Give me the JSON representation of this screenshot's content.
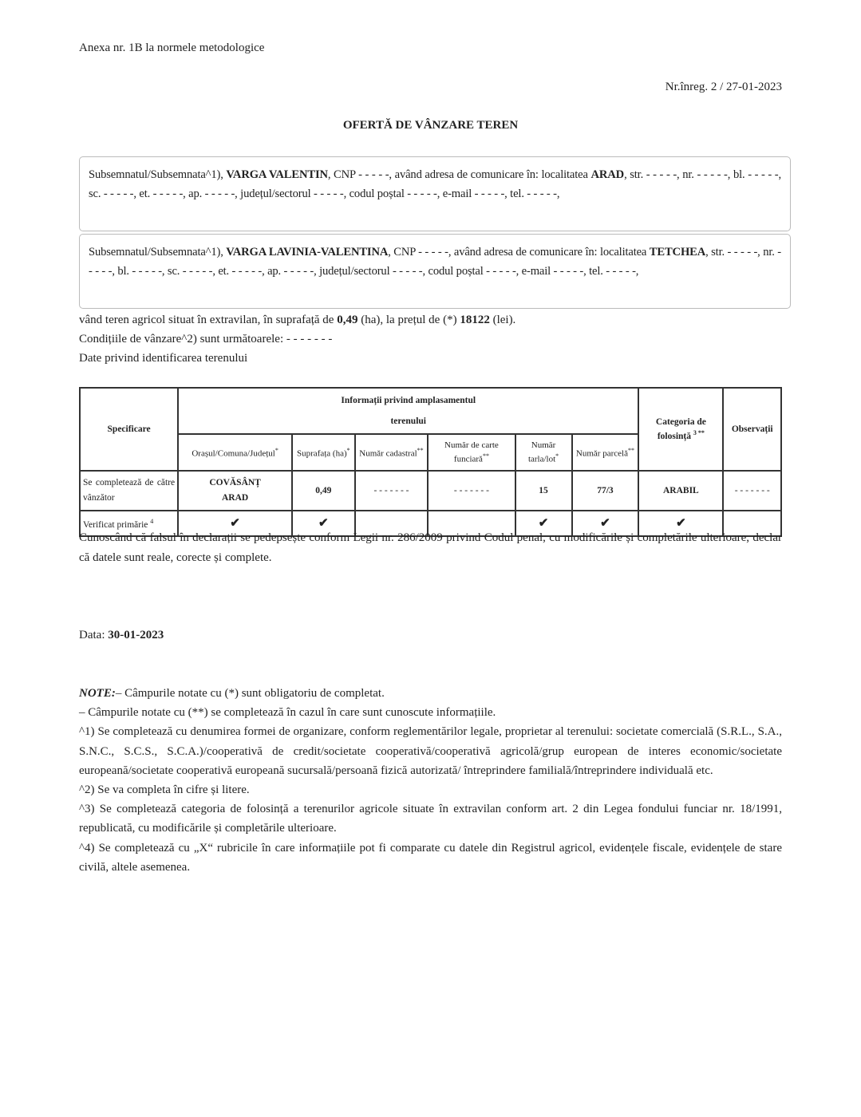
{
  "header": {
    "annex": "Anexa nr. 1B la normele metodologice",
    "registration": "Nr.înreg. 2 / 27-01-2023",
    "title": "OFERTĂ DE VÂNZARE TEREN"
  },
  "sellers": [
    {
      "prefix": "Subsemnatul/Subsemnata^1), ",
      "name": "VARGA VALENTIN",
      "mid": ", CNP - - - - -, având adresa de comunicare în: localitatea ",
      "locality": "ARAD",
      "rest": ", str. - - - - -, nr. - - - - -, bl. - - - - -, sc. - - - - -, et. - - - - -, ap. - - - - -, județul/sectorul - - - - -, codul poștal - - - - -, e-mail - - - - -, tel. - - - - -,"
    },
    {
      "prefix": "Subsemnatul/Subsemnata^1), ",
      "name": "VARGA LAVINIA-VALENTINA",
      "mid": ", CNP - - - - -, având adresa de comunicare în: localitatea ",
      "locality": "TETCHEA",
      "rest": ", str. - - - - -, nr. - - - - -, bl. - - - - -, sc. - - - - -, et. - - - - -, ap. - - - - -, județul/sectorul - - - - -, codul poștal - - - - -, e-mail - - - - -, tel. - - - - -,"
    }
  ],
  "offer": {
    "t1": "vând teren agricol situat în extravilan, în suprafață de ",
    "area": "0,49",
    "t2": " (ha), la prețul de (*) ",
    "price": "18122",
    "t3": " (lei).",
    "conditions": "Condițiile de vânzare^2) sunt următoarele: - - - - - - -",
    "identification": "Date privind identificarea terenului"
  },
  "table": {
    "specificare": "Specificare",
    "info_line1": "Informații privind amplasamentul",
    "info_line2": "terenului",
    "categoria": "Categoria de folosință",
    "categoria_sup": "3 **",
    "observatii": "Observații",
    "sub": [
      {
        "l": "Orașul/Comuna/Județul",
        "s": "*"
      },
      {
        "l": "Suprafața (ha)",
        "s": "*"
      },
      {
        "l": "Număr cadastral",
        "s": "**"
      },
      {
        "l": "Număr de carte funciară",
        "s": "**"
      },
      {
        "l": "Număr tarla/lot",
        "s": "*"
      },
      {
        "l": "Număr parcelă",
        "s": "**"
      }
    ],
    "row1": {
      "label": "Se completează de către vânzător",
      "locality1": "COVĂSÂNȚ",
      "locality2": "ARAD",
      "area": "0,49",
      "cadastral": "- - - - - - -",
      "carte": "- - - - - - -",
      "tarla": "15",
      "parcela": "77/3",
      "categoria": "ARABIL",
      "observatii": "- - - - - - -"
    },
    "row2": {
      "label": "Verificat primărie",
      "label_sup": "4",
      "checks": [
        "✔",
        "✔",
        "",
        "",
        "✔",
        "✔",
        "✔",
        ""
      ]
    }
  },
  "declaration": "Cunoscând că falsul în declarații se pedepsește conform Legii nr. 286/2009 privind Codul penal, cu modificările și completările ulterioare, declar că datele sunt reale, corecte și complete.",
  "date": {
    "label": "Data: ",
    "value": "30-01-2023"
  },
  "notes": {
    "label": "NOTE:",
    "n0": "– Câmpurile notate cu (*) sunt obligatoriu de completat.",
    "n1": "– Câmpurile notate cu (**) se completează în cazul în care sunt cunoscute informațiile.",
    "n2": "^1) Se completează cu denumirea formei de organizare, conform reglementărilor legale, proprietar al terenului: societate comercială (S.R.L., S.A., S.N.C., S.C.S., S.C.A.)/cooperativă de credit/societate cooperativă/cooperativă agricolă/grup european de interes economic/societate europeană/societate cooperativă europeană sucursală/persoană fizică autorizată/ întreprindere familială/întreprindere individuală etc.",
    "n3": "^2) Se va completa în cifre și litere.",
    "n4": "^3) Se completează categoria de folosință a terenurilor agricole situate în extravilan conform art. 2 din Legea fondului funciar nr. 18/1991, republicată, cu modificările și completările ulterioare.",
    "n5": "^4) Se completează cu „X“ rubricile în care informațiile pot fi comparate cu datele din Registrul agricol, evidențele fiscale, evidențele de stare civilă, altele asemenea."
  }
}
